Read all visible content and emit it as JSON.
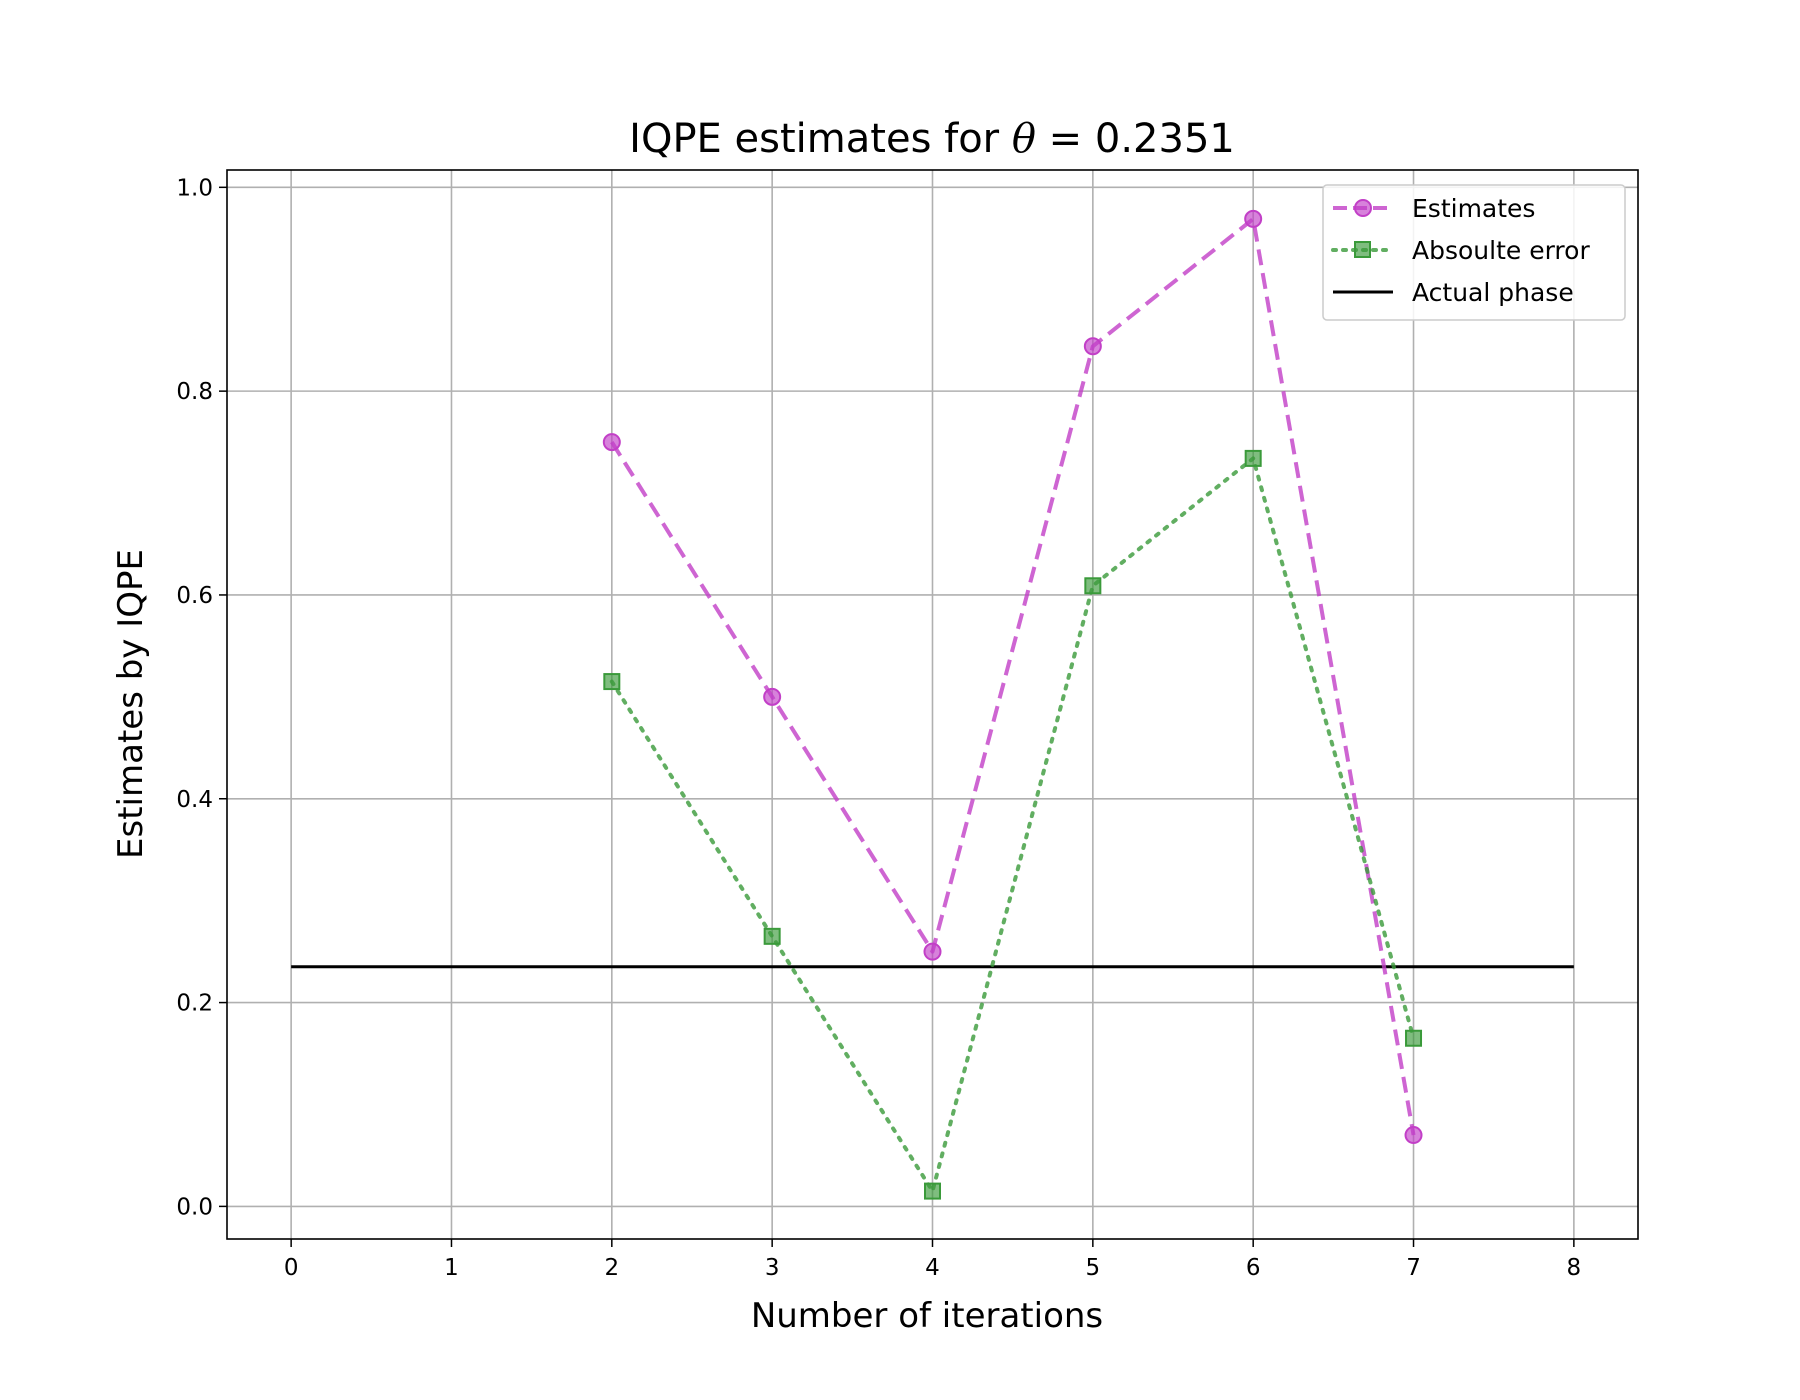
{
  "chart_data": {
    "type": "line",
    "title_prefix": "IQPE estimates for ",
    "title_symbol": "θ",
    "title_suffix": " = 0.2351",
    "xlabel": "Number of iterations",
    "ylabel": "Estimates by IQPE",
    "xlim": [
      -0.4,
      8.4
    ],
    "ylim": [
      -0.032,
      1.017
    ],
    "xticks": [
      0,
      1,
      2,
      3,
      4,
      5,
      6,
      7,
      8
    ],
    "xtick_labels": [
      "0",
      "1",
      "2",
      "3",
      "4",
      "5",
      "6",
      "7",
      "8"
    ],
    "yticks": [
      0.0,
      0.2,
      0.4,
      0.6,
      0.8,
      1.0
    ],
    "ytick_labels": [
      "0.0",
      "0.2",
      "0.4",
      "0.6",
      "0.8",
      "1.0"
    ],
    "grid": true,
    "legend_position": "top-right",
    "series": [
      {
        "name": "Estimates",
        "color": "#c23fc7",
        "style": "dashed",
        "marker": "circle",
        "x": [
          2,
          3,
          4,
          5,
          6,
          7
        ],
        "values": [
          0.75,
          0.5,
          0.25,
          0.844,
          0.969,
          0.07
        ]
      },
      {
        "name": "Absoulte error",
        "color": "#3a9a3a",
        "style": "dotted",
        "marker": "square",
        "x": [
          2,
          3,
          4,
          5,
          6,
          7
        ],
        "values": [
          0.515,
          0.265,
          0.015,
          0.609,
          0.734,
          0.165
        ]
      }
    ],
    "reference_line": {
      "name": "Actual phase",
      "color": "#000000",
      "y": 0.2351,
      "x_range": [
        0,
        8
      ]
    }
  }
}
